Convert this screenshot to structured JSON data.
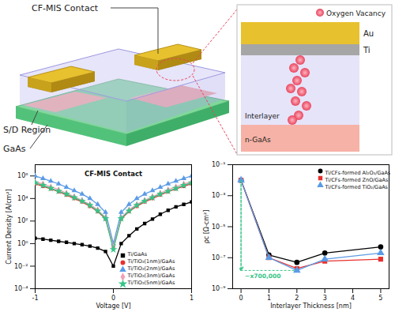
{
  "diagram": {
    "callouts": [
      "CF-MIS Contact",
      "S/D Region",
      "GaAs"
    ],
    "inset": {
      "marker_label": "Oxygen Vacancy",
      "layers": [
        "Au",
        "Ti",
        "Interlayer",
        "n-GaAs"
      ]
    }
  },
  "chart_data": [
    {
      "type": "line",
      "title": "CF-MIS Contact",
      "x_label": "Voltage [V]",
      "y_label": "Current Density [A/cm²]",
      "log": "y",
      "grid": false,
      "legend": "lower right",
      "xlim": [
        -1,
        1
      ],
      "xticks": [
        -1,
        0,
        1
      ],
      "ylim": [
        0.0001,
        10000000
      ],
      "yticks": [
        {
          "value": 0.0001,
          "label": "10⁻⁴"
        },
        {
          "value": 0.01,
          "label": "10⁻²"
        },
        {
          "value": 1,
          "label": "10⁰"
        },
        {
          "value": 100,
          "label": "10²"
        },
        {
          "value": 10000,
          "label": "10⁴"
        },
        {
          "value": 1000000,
          "label": "10⁶"
        }
      ],
      "x": [
        -1,
        -0.9,
        -0.8,
        -0.7,
        -0.6,
        -0.5,
        -0.4,
        -0.3,
        -0.2,
        -0.1,
        0,
        0.1,
        0.2,
        0.3,
        0.4,
        0.5,
        0.6,
        0.7,
        0.8,
        0.9,
        1
      ],
      "series": [
        {
          "name": "Ti/GaAs",
          "color": "#000000",
          "marker": "square",
          "values": [
            3,
            2.5,
            2,
            1.6,
            1.3,
            1,
            0.8,
            0.6,
            0.4,
            0.2,
            0.01,
            1,
            5,
            20,
            60,
            150,
            400,
            900,
            1800,
            3000,
            5000
          ]
        },
        {
          "name": "Ti/TiO₂(1nm)/GaAs",
          "color": "#e8312f",
          "marker": "circle",
          "values": [
            200000,
            120000,
            70000,
            40000,
            20000,
            10000,
            5000,
            2000,
            700,
            150,
            0.5,
            150,
            700,
            2000,
            5000,
            10000,
            20000,
            40000,
            70000,
            120000,
            200000
          ]
        },
        {
          "name": "Ti/TiO₂(2nm)/GaAs",
          "color": "#5b9be6",
          "marker": "triangle",
          "values": [
            1000000,
            600000,
            350000,
            200000,
            100000,
            50000,
            25000,
            10000,
            3000,
            600,
            1,
            600,
            3000,
            10000,
            25000,
            50000,
            100000,
            200000,
            350000,
            600000,
            1000000
          ]
        },
        {
          "name": "Ti/TiO₂(3nm)/GaAs",
          "color": "#f2a0b4",
          "marker": "diamond",
          "values": [
            300000,
            200000,
            110000,
            60000,
            30000,
            15000,
            7000,
            3000,
            1000,
            200,
            0.5,
            200,
            1000,
            3000,
            7000,
            15000,
            30000,
            60000,
            110000,
            200000,
            300000
          ]
        },
        {
          "name": "Ti/TiO₂(5nm)/GaAs",
          "color": "#35c486",
          "marker": "star",
          "values": [
            250000,
            150000,
            80000,
            45000,
            25000,
            12000,
            6000,
            2500,
            800,
            170,
            0.3,
            170,
            800,
            2500,
            6000,
            12000,
            25000,
            45000,
            80000,
            150000,
            250000
          ]
        }
      ]
    },
    {
      "type": "line",
      "x_label": "Interlayer Thickness [nm]",
      "y_label": "ρc [Ω-cm²]",
      "log": "y",
      "grid": false,
      "legend": "upper right",
      "xlim": [
        -0.3,
        5.3
      ],
      "xticks": [
        0,
        1,
        2,
        3,
        4,
        5
      ],
      "ylim": [
        1e-09,
        0.1
      ],
      "yticks": [
        {
          "value": 1e-09,
          "label": "10⁻⁹"
        },
        {
          "value": 1e-07,
          "label": "10⁻⁷"
        },
        {
          "value": 1e-05,
          "label": "10⁻⁵"
        },
        {
          "value": 0.001,
          "label": "10⁻³"
        },
        {
          "value": 0.1,
          "label": "10⁻¹"
        }
      ],
      "x": [
        0,
        1,
        2,
        3,
        5
      ],
      "annotation": {
        "text": "~x700,000",
        "color": "#35c486"
      },
      "series": [
        {
          "name": "Ti/CFs-formed Al₂O₃/GaAs",
          "color": "#000000",
          "marker": "circle",
          "values": [
            0.01,
            1.5e-07,
            5e-08,
            2e-07,
            5e-07
          ]
        },
        {
          "name": "Ti/CFs-formed ZnO/GaAs",
          "color": "#e8312f",
          "marker": "square",
          "values": [
            0.01,
            1e-07,
            2e-08,
            6e-08,
            8e-08
          ]
        },
        {
          "name": "Ti/CFs-formed TiO₂/GaAs",
          "color": "#5b9be6",
          "marker": "triangle",
          "values": [
            0.01,
            1e-07,
            1.5e-08,
            8e-08,
            2e-07
          ]
        }
      ]
    }
  ]
}
